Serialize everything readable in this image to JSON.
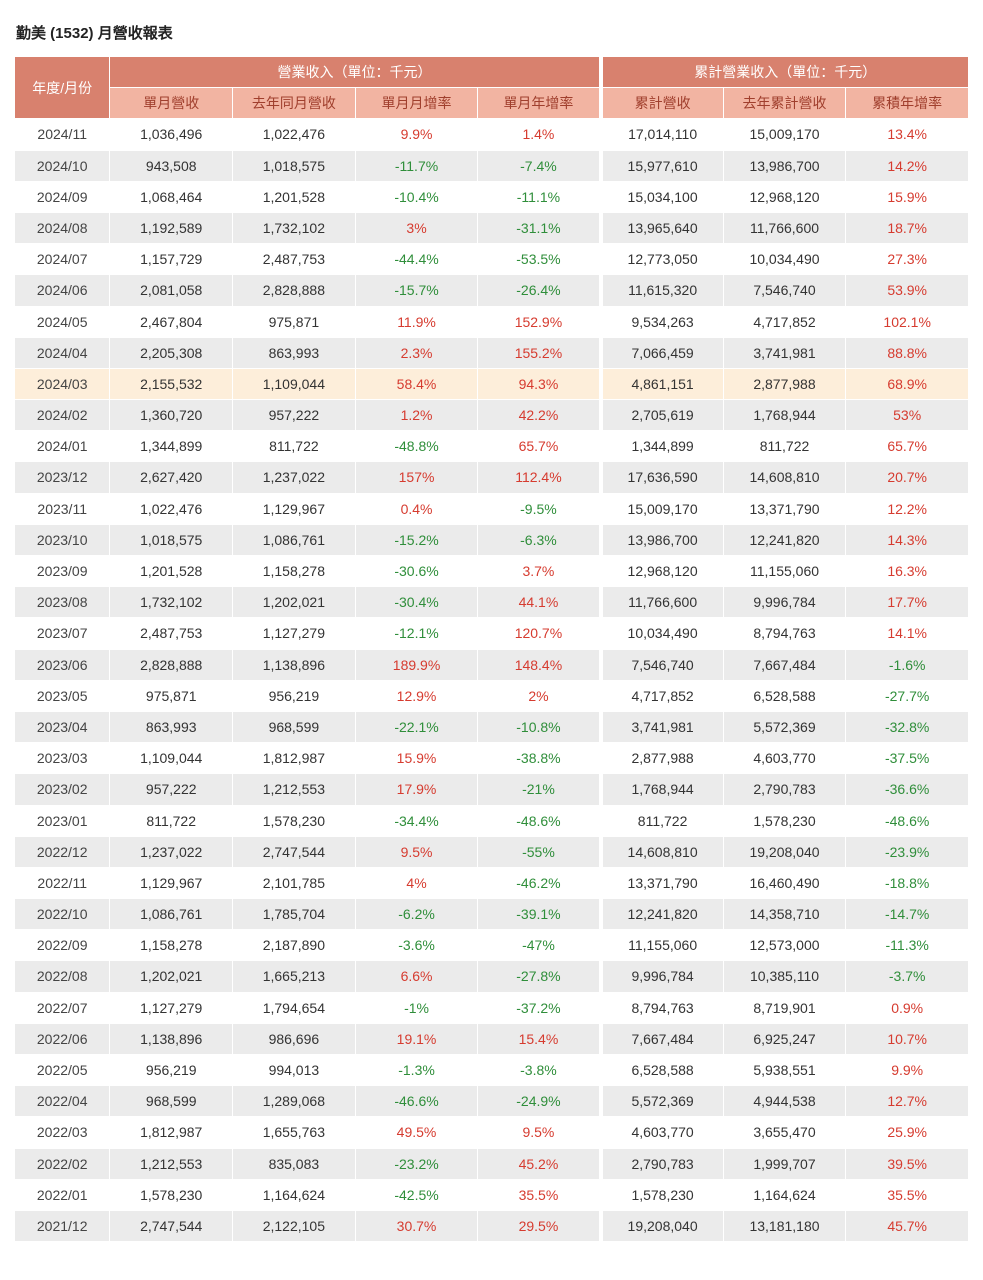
{
  "page_title": "勤美 (1532) 月營收報表",
  "colors": {
    "header_bg": "#d8816e",
    "header_text": "#ffffff",
    "subheader_bg": "#f2b4a2",
    "subheader_text": "#a03f2d",
    "row_alt_bg": "#ebebeb",
    "highlight_bg": "#fdeeda",
    "positive": "#d63b2f",
    "negative": "#2f8e3a"
  },
  "chart_data": {
    "type": "table",
    "title": "勤美 (1532) 月營收報表",
    "group_headers": [
      {
        "label": "年度/月份",
        "colspan": 1,
        "rowspan": 2
      },
      {
        "label": "營業收入（單位：千元）",
        "colspan": 4,
        "rowspan": 1
      },
      {
        "label": "累計營業收入（單位：千元）",
        "colspan": 3,
        "rowspan": 1
      }
    ],
    "columns": [
      "單月營收",
      "去年同月營收",
      "單月月增率",
      "單月年增率",
      "累計營收",
      "去年累計營收",
      "累積年增率"
    ],
    "percent_column_indices": [
      2,
      3,
      6
    ],
    "highlighted_row": "2024/03",
    "rows": [
      {
        "month": "2024/11",
        "values": [
          "1,036,496",
          "1,022,476",
          "9.9%",
          "1.4%",
          "17,014,110",
          "15,009,170",
          "13.4%"
        ]
      },
      {
        "month": "2024/10",
        "values": [
          "943,508",
          "1,018,575",
          "-11.7%",
          "-7.4%",
          "15,977,610",
          "13,986,700",
          "14.2%"
        ]
      },
      {
        "month": "2024/09",
        "values": [
          "1,068,464",
          "1,201,528",
          "-10.4%",
          "-11.1%",
          "15,034,100",
          "12,968,120",
          "15.9%"
        ]
      },
      {
        "month": "2024/08",
        "values": [
          "1,192,589",
          "1,732,102",
          "3%",
          "-31.1%",
          "13,965,640",
          "11,766,600",
          "18.7%"
        ]
      },
      {
        "month": "2024/07",
        "values": [
          "1,157,729",
          "2,487,753",
          "-44.4%",
          "-53.5%",
          "12,773,050",
          "10,034,490",
          "27.3%"
        ]
      },
      {
        "month": "2024/06",
        "values": [
          "2,081,058",
          "2,828,888",
          "-15.7%",
          "-26.4%",
          "11,615,320",
          "7,546,740",
          "53.9%"
        ]
      },
      {
        "month": "2024/05",
        "values": [
          "2,467,804",
          "975,871",
          "11.9%",
          "152.9%",
          "9,534,263",
          "4,717,852",
          "102.1%"
        ]
      },
      {
        "month": "2024/04",
        "values": [
          "2,205,308",
          "863,993",
          "2.3%",
          "155.2%",
          "7,066,459",
          "3,741,981",
          "88.8%"
        ]
      },
      {
        "month": "2024/03",
        "values": [
          "2,155,532",
          "1,109,044",
          "58.4%",
          "94.3%",
          "4,861,151",
          "2,877,988",
          "68.9%"
        ]
      },
      {
        "month": "2024/02",
        "values": [
          "1,360,720",
          "957,222",
          "1.2%",
          "42.2%",
          "2,705,619",
          "1,768,944",
          "53%"
        ]
      },
      {
        "month": "2024/01",
        "values": [
          "1,344,899",
          "811,722",
          "-48.8%",
          "65.7%",
          "1,344,899",
          "811,722",
          "65.7%"
        ]
      },
      {
        "month": "2023/12",
        "values": [
          "2,627,420",
          "1,237,022",
          "157%",
          "112.4%",
          "17,636,590",
          "14,608,810",
          "20.7%"
        ]
      },
      {
        "month": "2023/11",
        "values": [
          "1,022,476",
          "1,129,967",
          "0.4%",
          "-9.5%",
          "15,009,170",
          "13,371,790",
          "12.2%"
        ]
      },
      {
        "month": "2023/10",
        "values": [
          "1,018,575",
          "1,086,761",
          "-15.2%",
          "-6.3%",
          "13,986,700",
          "12,241,820",
          "14.3%"
        ]
      },
      {
        "month": "2023/09",
        "values": [
          "1,201,528",
          "1,158,278",
          "-30.6%",
          "3.7%",
          "12,968,120",
          "11,155,060",
          "16.3%"
        ]
      },
      {
        "month": "2023/08",
        "values": [
          "1,732,102",
          "1,202,021",
          "-30.4%",
          "44.1%",
          "11,766,600",
          "9,996,784",
          "17.7%"
        ]
      },
      {
        "month": "2023/07",
        "values": [
          "2,487,753",
          "1,127,279",
          "-12.1%",
          "120.7%",
          "10,034,490",
          "8,794,763",
          "14.1%"
        ]
      },
      {
        "month": "2023/06",
        "values": [
          "2,828,888",
          "1,138,896",
          "189.9%",
          "148.4%",
          "7,546,740",
          "7,667,484",
          "-1.6%"
        ]
      },
      {
        "month": "2023/05",
        "values": [
          "975,871",
          "956,219",
          "12.9%",
          "2%",
          "4,717,852",
          "6,528,588",
          "-27.7%"
        ]
      },
      {
        "month": "2023/04",
        "values": [
          "863,993",
          "968,599",
          "-22.1%",
          "-10.8%",
          "3,741,981",
          "5,572,369",
          "-32.8%"
        ]
      },
      {
        "month": "2023/03",
        "values": [
          "1,109,044",
          "1,812,987",
          "15.9%",
          "-38.8%",
          "2,877,988",
          "4,603,770",
          "-37.5%"
        ]
      },
      {
        "month": "2023/02",
        "values": [
          "957,222",
          "1,212,553",
          "17.9%",
          "-21%",
          "1,768,944",
          "2,790,783",
          "-36.6%"
        ]
      },
      {
        "month": "2023/01",
        "values": [
          "811,722",
          "1,578,230",
          "-34.4%",
          "-48.6%",
          "811,722",
          "1,578,230",
          "-48.6%"
        ]
      },
      {
        "month": "2022/12",
        "values": [
          "1,237,022",
          "2,747,544",
          "9.5%",
          "-55%",
          "14,608,810",
          "19,208,040",
          "-23.9%"
        ]
      },
      {
        "month": "2022/11",
        "values": [
          "1,129,967",
          "2,101,785",
          "4%",
          "-46.2%",
          "13,371,790",
          "16,460,490",
          "-18.8%"
        ]
      },
      {
        "month": "2022/10",
        "values": [
          "1,086,761",
          "1,785,704",
          "-6.2%",
          "-39.1%",
          "12,241,820",
          "14,358,710",
          "-14.7%"
        ]
      },
      {
        "month": "2022/09",
        "values": [
          "1,158,278",
          "2,187,890",
          "-3.6%",
          "-47%",
          "11,155,060",
          "12,573,000",
          "-11.3%"
        ]
      },
      {
        "month": "2022/08",
        "values": [
          "1,202,021",
          "1,665,213",
          "6.6%",
          "-27.8%",
          "9,996,784",
          "10,385,110",
          "-3.7%"
        ]
      },
      {
        "month": "2022/07",
        "values": [
          "1,127,279",
          "1,794,654",
          "-1%",
          "-37.2%",
          "8,794,763",
          "8,719,901",
          "0.9%"
        ]
      },
      {
        "month": "2022/06",
        "values": [
          "1,138,896",
          "986,696",
          "19.1%",
          "15.4%",
          "7,667,484",
          "6,925,247",
          "10.7%"
        ]
      },
      {
        "month": "2022/05",
        "values": [
          "956,219",
          "994,013",
          "-1.3%",
          "-3.8%",
          "6,528,588",
          "5,938,551",
          "9.9%"
        ]
      },
      {
        "month": "2022/04",
        "values": [
          "968,599",
          "1,289,068",
          "-46.6%",
          "-24.9%",
          "5,572,369",
          "4,944,538",
          "12.7%"
        ]
      },
      {
        "month": "2022/03",
        "values": [
          "1,812,987",
          "1,655,763",
          "49.5%",
          "9.5%",
          "4,603,770",
          "3,655,470",
          "25.9%"
        ]
      },
      {
        "month": "2022/02",
        "values": [
          "1,212,553",
          "835,083",
          "-23.2%",
          "45.2%",
          "2,790,783",
          "1,999,707",
          "39.5%"
        ]
      },
      {
        "month": "2022/01",
        "values": [
          "1,578,230",
          "1,164,624",
          "-42.5%",
          "35.5%",
          "1,578,230",
          "1,164,624",
          "35.5%"
        ]
      },
      {
        "month": "2021/12",
        "values": [
          "2,747,544",
          "2,122,105",
          "30.7%",
          "29.5%",
          "19,208,040",
          "13,181,180",
          "45.7%"
        ]
      }
    ]
  }
}
